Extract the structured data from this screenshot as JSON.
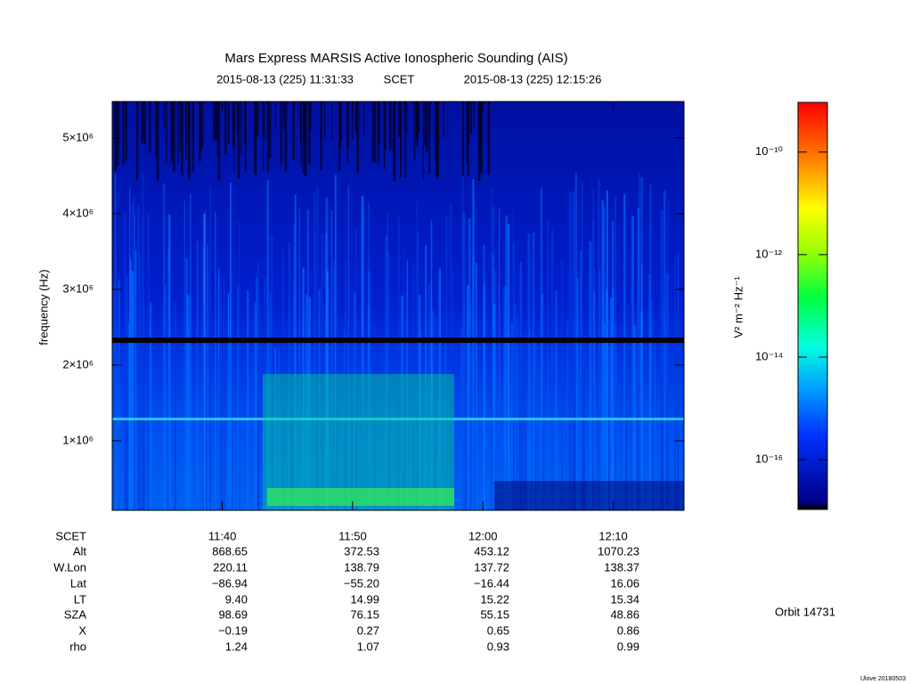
{
  "chart_data": {
    "type": "spectrogram",
    "title": "Mars Express MARSIS Active Ionospheric Sounding (AIS)",
    "start": "2015-08-13 (225) 11:31:33",
    "time_label": "SCET",
    "end": "2015-08-13 (225) 12:15:26",
    "ylabel": "frequency (Hz)",
    "ylim": [
      82000,
      5480000
    ],
    "yticks": [
      {
        "value": 1000000,
        "label": "1×10⁶"
      },
      {
        "value": 2000000,
        "label": "2×10⁶"
      },
      {
        "value": 3000000,
        "label": "3×10⁶"
      },
      {
        "value": 4000000,
        "label": "4×10⁶"
      },
      {
        "value": 5000000,
        "label": "5×10⁶"
      }
    ],
    "xlim": [
      "11:31:33",
      "12:15:26"
    ],
    "xticks": [
      "11:40",
      "11:50",
      "12:00",
      "12:10"
    ],
    "colorbar": {
      "label": "V² m⁻² Hz⁻¹",
      "log": true,
      "lim": [
        1.07e-17,
        9.3e-10
      ],
      "ticks": [
        {
          "value": 1e-10,
          "label": "10⁻¹⁰"
        },
        {
          "value": 1e-12,
          "label": "10⁻¹²"
        },
        {
          "value": 1e-14,
          "label": "10⁻¹⁴"
        },
        {
          "value": 1e-16,
          "label": "10⁻¹⁶"
        }
      ]
    },
    "ephemeris": {
      "labels": [
        "SCET",
        "Alt",
        "W.Lon",
        "Lat",
        "LT",
        "SZA",
        "X",
        "rho"
      ],
      "rows": [
        [
          "868.65",
          "372.53",
          "453.12",
          "1070.23"
        ],
        [
          "220.11",
          "138.79",
          "137.72",
          "138.37"
        ],
        [
          "−86.94",
          "−55.20",
          "−16.44",
          "16.06"
        ],
        [
          "9.40",
          "14.99",
          "15.22",
          "15.34"
        ],
        [
          "98.69",
          "76.15",
          "55.15",
          "48.86"
        ],
        [
          "−0.19",
          "0.27",
          "0.65",
          "0.86"
        ],
        [
          "1.24",
          "1.07",
          "0.93",
          "0.99"
        ]
      ]
    },
    "orbit": "Orbit 14731",
    "footer": "Ulove 20180503"
  }
}
